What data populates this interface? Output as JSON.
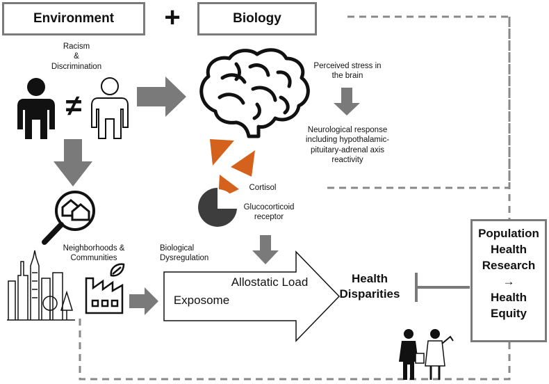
{
  "header": {
    "environment_label": "Environment",
    "plus_symbol": "+",
    "biology_label": "Biology"
  },
  "environment": {
    "racism_label": "Racism\n&\nDiscrimination",
    "not_equal_symbol": "≠",
    "neighborhoods_label": "Neighborhoods &\nCommunities"
  },
  "biology": {
    "perceived_stress": "Perceived stress in\nthe brain",
    "neurological_response": "Neurological response\nincluding hypothalamic-\npituitary-adrenal axis\nreactivity",
    "cortisol_label": "Cortisol",
    "receptor_label": "Glucocorticoid\nreceptor",
    "dysregulation_label": "Biological\nDysregulation"
  },
  "arrow": {
    "allostatic_load": "Allostatic Load",
    "exposome": "Exposome"
  },
  "outcome": {
    "health_disparities": "Health\nDisparities"
  },
  "research_box": {
    "line1": "Population",
    "line2": "Health",
    "line3": "Research",
    "arrow": "→",
    "line4": "Health",
    "line5": "Equity"
  },
  "colors": {
    "arrow_gray": "#7a7a7a",
    "cortisol_orange": "#d4621c",
    "receptor_dark": "#3d3d3d",
    "dashed_line": "#888888"
  },
  "icons": [
    "person-black-icon",
    "person-outline-icon",
    "brain-icon",
    "magnifier-houses-icon",
    "city-skyline-icon",
    "factory-icon",
    "researchers-icon"
  ]
}
